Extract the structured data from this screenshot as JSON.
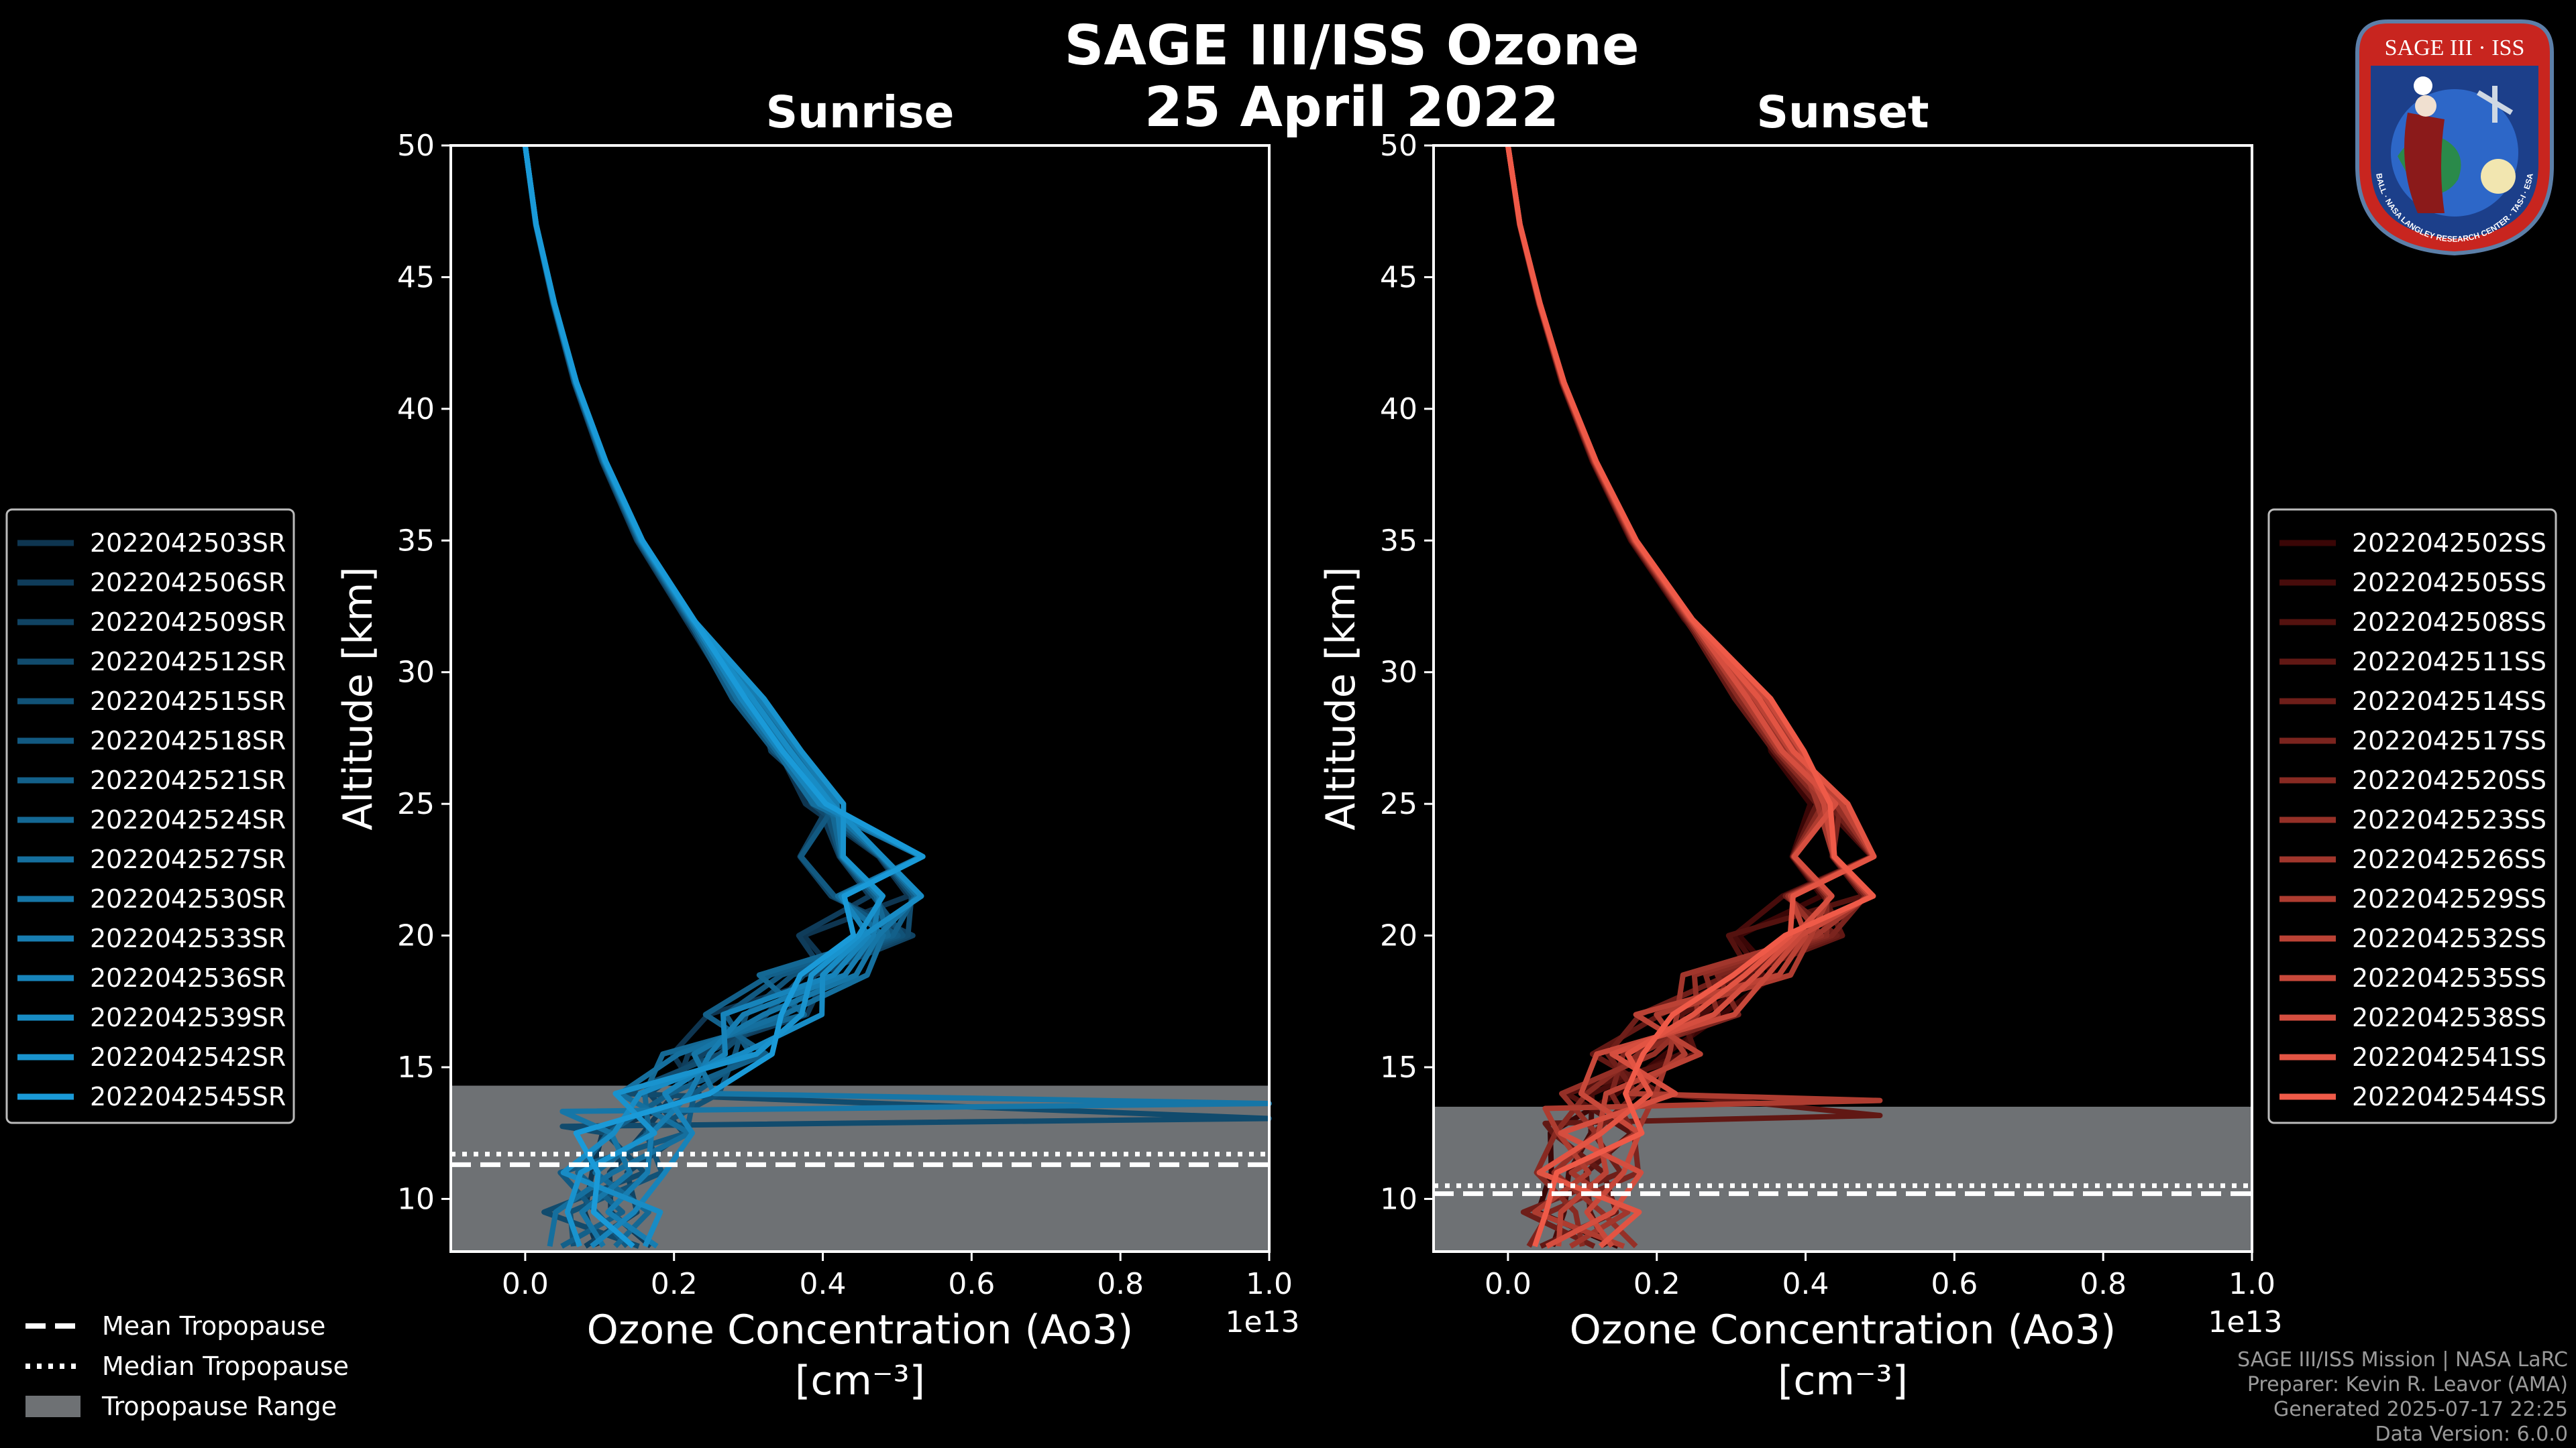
{
  "title_line1": "SAGE III/ISS Ozone",
  "title_line2": "25 April 2022",
  "footer": {
    "line1": "SAGE III/ISS Mission | NASA LaRC",
    "line2": "Preparer: Kevin R. Leavor (AMA)",
    "line3": "Generated 2025-07-17 22:25",
    "line4": "Data Version: 6.0.0"
  },
  "logo": {
    "title": "SAGE III · ISS",
    "ring_text": "BALL · NASA LANGLEY RESEARCH CENTER · TAS-I · ESA"
  },
  "tropopause_legend": [
    "Mean Tropopause",
    "Median Tropopause",
    "Tropopause Range"
  ],
  "colors": {
    "sunrise_light": "#1a9ad8",
    "sunrise_dark": "#0e3550",
    "sunset_light": "#ef5a48",
    "sunset_dark": "#3a0606",
    "tropo_fill": "#6e7174"
  },
  "chart_data": [
    {
      "type": "line",
      "panel": "sunrise",
      "title": "Sunrise",
      "xlabel": "Ozone Concentration (Ao3)",
      "xunits": "[cm⁻³]",
      "ylabel": "Altitude [km]",
      "x_multiplier": "1e13",
      "xlim": [
        -0.1,
        1.0
      ],
      "ylim": [
        8,
        50
      ],
      "xticks": [
        "0.0",
        "0.2",
        "0.4",
        "0.6",
        "0.8",
        "1.0"
      ],
      "yticks": [
        "10",
        "15",
        "20",
        "25",
        "30",
        "35",
        "40",
        "45",
        "50"
      ],
      "tropopause": {
        "mean": 11.3,
        "median": 11.7,
        "range": [
          8,
          14.3
        ]
      },
      "series": [
        "2022042503SR",
        "2022042506SR",
        "2022042509SR",
        "2022042512SR",
        "2022042515SR",
        "2022042518SR",
        "2022042521SR",
        "2022042524SR",
        "2022042527SR",
        "2022042530SR",
        "2022042533SR",
        "2022042536SR",
        "2022042539SR",
        "2022042542SR",
        "2022042545SR"
      ],
      "base_profile": {
        "altitude": [
          50,
          47,
          44,
          41,
          38,
          35,
          32,
          29,
          27,
          25,
          23,
          21.5,
          20,
          18.5,
          17,
          15.5,
          14,
          12.5,
          11,
          9.5,
          8.2
        ],
        "ozone": [
          0.0,
          0.015,
          0.04,
          0.07,
          0.11,
          0.16,
          0.23,
          0.31,
          0.37,
          0.42,
          0.47,
          0.49,
          0.47,
          0.41,
          0.33,
          0.26,
          0.2,
          0.15,
          0.12,
          0.11,
          0.1
        ]
      }
    },
    {
      "type": "line",
      "panel": "sunset",
      "title": "Sunset",
      "xlabel": "Ozone Concentration (Ao3)",
      "xunits": "[cm⁻³]",
      "ylabel": "Altitude [km]",
      "x_multiplier": "1e13",
      "xlim": [
        -0.1,
        1.0
      ],
      "ylim": [
        8,
        50
      ],
      "xticks": [
        "0.0",
        "0.2",
        "0.4",
        "0.6",
        "0.8",
        "1.0"
      ],
      "yticks": [
        "10",
        "15",
        "20",
        "25",
        "30",
        "35",
        "40",
        "45",
        "50"
      ],
      "tropopause": {
        "mean": 10.2,
        "median": 10.5,
        "range": [
          8,
          13.5
        ]
      },
      "series": [
        "2022042502SS",
        "2022042505SS",
        "2022042508SS",
        "2022042511SS",
        "2022042514SS",
        "2022042517SS",
        "2022042520SS",
        "2022042523SS",
        "2022042526SS",
        "2022042529SS",
        "2022042532SS",
        "2022042535SS",
        "2022042538SS",
        "2022042541SS",
        "2022042544SS"
      ],
      "base_profile": {
        "altitude": [
          50,
          47,
          44,
          41,
          38,
          35,
          32,
          29,
          27,
          25,
          23,
          21.5,
          20,
          18.5,
          17,
          15.5,
          14,
          12.5,
          11,
          9.5,
          8.2
        ],
        "ozone": [
          0.0,
          0.015,
          0.04,
          0.07,
          0.11,
          0.16,
          0.23,
          0.31,
          0.36,
          0.41,
          0.42,
          0.4,
          0.36,
          0.29,
          0.23,
          0.18,
          0.14,
          0.12,
          0.1,
          0.09,
          0.09
        ]
      }
    }
  ]
}
